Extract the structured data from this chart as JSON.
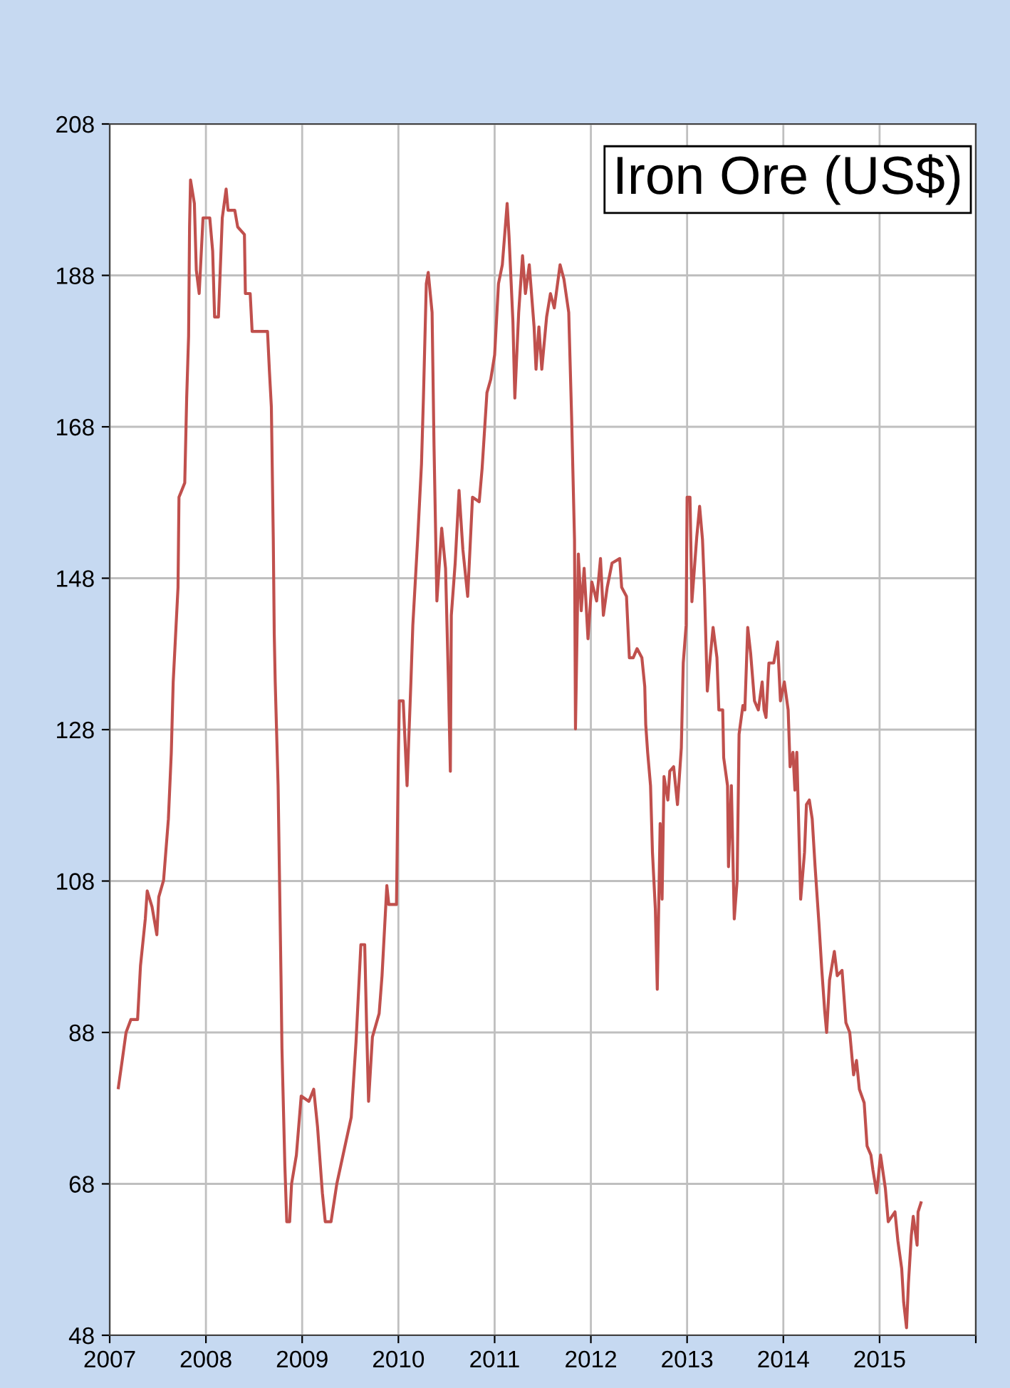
{
  "chart_data": {
    "type": "line",
    "title": "Iron Ore (US$)",
    "xlim": [
      2007,
      2016
    ],
    "xticks": [
      2007,
      2008,
      2009,
      2010,
      2011,
      2012,
      2013,
      2014,
      2015,
      {
        "value": 2016,
        "label": null
      }
    ],
    "ylim": [
      48,
      208
    ],
    "yticks": [
      48,
      68,
      88,
      108,
      128,
      148,
      168,
      188,
      208
    ],
    "grid": true,
    "marker": "none",
    "line_style": "solid",
    "series": [
      {
        "color": "#c0504d",
        "x": [
          2007.09,
          2007.13,
          2007.17,
          2007.22,
          2007.29,
          2007.32,
          2007.37,
          2007.39,
          2007.44,
          2007.49,
          2007.51,
          2007.56,
          2007.61,
          2007.64,
          2007.66,
          2007.71,
          2007.72,
          2007.78,
          2007.8,
          2007.82,
          2007.83,
          2007.84,
          2007.88,
          2007.9,
          2007.93,
          2007.97,
          2008.04,
          2008.07,
          2008.09,
          2008.13,
          2008.17,
          2008.21,
          2008.23,
          2008.3,
          2008.33,
          2008.4,
          2008.41,
          2008.46,
          2008.48,
          2008.64,
          2008.66,
          2008.68,
          2008.7,
          2008.71,
          2008.72,
          2008.75,
          2008.78,
          2008.79,
          2008.82,
          2008.84,
          2008.87,
          2008.89,
          2008.94,
          2008.99,
          2009.07,
          2009.12,
          2009.16,
          2009.21,
          2009.24,
          2009.3,
          2009.36,
          2009.44,
          2009.51,
          2009.56,
          2009.61,
          2009.65,
          2009.67,
          2009.69,
          2009.73,
          2009.8,
          2009.83,
          2009.88,
          2009.9,
          2009.98,
          2010.0,
          2010.01,
          2010.05,
          2010.09,
          2010.13,
          2010.15,
          2010.2,
          2010.24,
          2010.26,
          2010.29,
          2010.31,
          2010.35,
          2010.37,
          2010.4,
          2010.45,
          2010.49,
          2010.52,
          2010.54,
          2010.55,
          2010.59,
          2010.63,
          2010.67,
          2010.72,
          2010.77,
          2010.84,
          2010.87,
          2010.92,
          2010.96,
          2011.0,
          2011.04,
          2011.08,
          2011.13,
          2011.15,
          2011.19,
          2011.21,
          2011.25,
          2011.29,
          2011.32,
          2011.36,
          2011.41,
          2011.43,
          2011.46,
          2011.49,
          2011.54,
          2011.58,
          2011.62,
          2011.68,
          2011.72,
          2011.77,
          2011.8,
          2011.83,
          2011.84,
          2011.87,
          2011.9,
          2011.93,
          2011.97,
          2012.01,
          2012.06,
          2012.1,
          2012.13,
          2012.17,
          2012.22,
          2012.3,
          2012.32,
          2012.37,
          2012.4,
          2012.44,
          2012.48,
          2012.53,
          2012.56,
          2012.57,
          2012.59,
          2012.62,
          2012.64,
          2012.67,
          2012.69,
          2012.72,
          2012.74,
          2012.76,
          2012.8,
          2012.82,
          2012.86,
          2012.9,
          2012.94,
          2012.96,
          2012.99,
          2013.0,
          2013.03,
          2013.05,
          2013.1,
          2013.13,
          2013.16,
          2013.18,
          2013.21,
          2013.24,
          2013.27,
          2013.31,
          2013.33,
          2013.37,
          2013.38,
          2013.42,
          2013.43,
          2013.46,
          2013.49,
          2013.52,
          2013.54,
          2013.58,
          2013.6,
          2013.63,
          2013.66,
          2013.7,
          2013.74,
          2013.78,
          2013.8,
          2013.82,
          2013.85,
          2013.9,
          2013.94,
          2013.97,
          2014.01,
          2014.05,
          2014.07,
          2014.1,
          2014.12,
          2014.14,
          2014.18,
          2014.22,
          2014.24,
          2014.27,
          2014.3,
          2014.33,
          2014.37,
          2014.4,
          2014.43,
          2014.45,
          2014.48,
          2014.53,
          2014.56,
          2014.61,
          2014.65,
          2014.69,
          2014.73,
          2014.76,
          2014.79,
          2014.84,
          2014.87,
          2014.91,
          2014.93,
          2014.97,
          2015.01,
          2015.06,
          2015.09,
          2015.16,
          2015.19,
          2015.23,
          2015.25,
          2015.28,
          2015.3,
          2015.33,
          2015.35,
          2015.39,
          2015.4,
          2015.43
        ],
        "values": [
          80.7,
          84.3,
          88.0,
          89.7,
          89.7,
          96.8,
          103.0,
          106.7,
          104.6,
          100.9,
          105.9,
          108.1,
          116.2,
          124.9,
          134.3,
          146.8,
          158.7,
          160.6,
          171.8,
          180.0,
          194.4,
          200.6,
          197.5,
          188.7,
          185.6,
          195.6,
          195.6,
          191.2,
          182.5,
          182.5,
          195.6,
          199.4,
          196.6,
          196.6,
          194.4,
          193.4,
          185.6,
          185.6,
          180.6,
          180.6,
          175.3,
          170.6,
          153.1,
          140.6,
          134.3,
          120.6,
          95.5,
          85.9,
          70.5,
          63.0,
          63.0,
          68.0,
          71.8,
          79.6,
          78.9,
          80.5,
          75.5,
          66.8,
          63.0,
          63.0,
          68.0,
          72.7,
          76.8,
          86.8,
          99.6,
          99.6,
          88.7,
          78.9,
          87.4,
          90.5,
          95.5,
          107.4,
          104.9,
          104.9,
          124.9,
          131.8,
          131.8,
          120.6,
          134.3,
          141.8,
          153.1,
          163.1,
          171.8,
          186.9,
          188.4,
          183.1,
          165.6,
          145.0,
          154.6,
          149.3,
          134.3,
          122.5,
          143.1,
          150.0,
          159.6,
          151.8,
          145.6,
          158.7,
          158.1,
          162.5,
          172.5,
          174.3,
          177.5,
          186.9,
          189.4,
          197.5,
          193.1,
          181.9,
          171.8,
          183.1,
          190.6,
          185.6,
          189.4,
          181.2,
          175.6,
          181.2,
          175.6,
          182.5,
          185.6,
          183.7,
          189.4,
          187.5,
          183.1,
          169.3,
          153.1,
          128.1,
          151.2,
          143.7,
          149.3,
          140.0,
          147.5,
          145.0,
          150.6,
          143.1,
          146.8,
          150.0,
          150.6,
          146.8,
          145.6,
          137.5,
          137.5,
          138.7,
          137.5,
          133.7,
          128.7,
          125.0,
          120.6,
          111.8,
          104.3,
          93.7,
          115.6,
          105.6,
          121.8,
          118.7,
          122.5,
          123.1,
          118.1,
          125.6,
          136.8,
          141.8,
          158.7,
          158.7,
          144.9,
          153.4,
          157.5,
          153.1,
          146.8,
          133.1,
          137.5,
          141.5,
          137.5,
          130.6,
          130.6,
          124.3,
          120.6,
          109.9,
          120.6,
          103.0,
          108.1,
          127.4,
          131.2,
          130.6,
          141.5,
          138.1,
          131.8,
          130.6,
          134.3,
          130.6,
          129.6,
          136.8,
          136.8,
          139.6,
          131.8,
          134.3,
          130.6,
          123.1,
          125.0,
          120.0,
          125.0,
          105.6,
          111.8,
          118.1,
          118.7,
          116.2,
          109.9,
          102.4,
          96.2,
          90.8,
          88.0,
          94.9,
          98.7,
          95.5,
          96.2,
          89.3,
          88.0,
          82.4,
          84.3,
          80.5,
          78.7,
          73.0,
          71.8,
          69.9,
          66.8,
          71.8,
          67.4,
          63.0,
          64.3,
          60.5,
          56.8,
          52.4,
          49.0,
          54.9,
          61.2,
          63.7,
          59.9,
          64.3,
          65.5
        ]
      }
    ]
  }
}
